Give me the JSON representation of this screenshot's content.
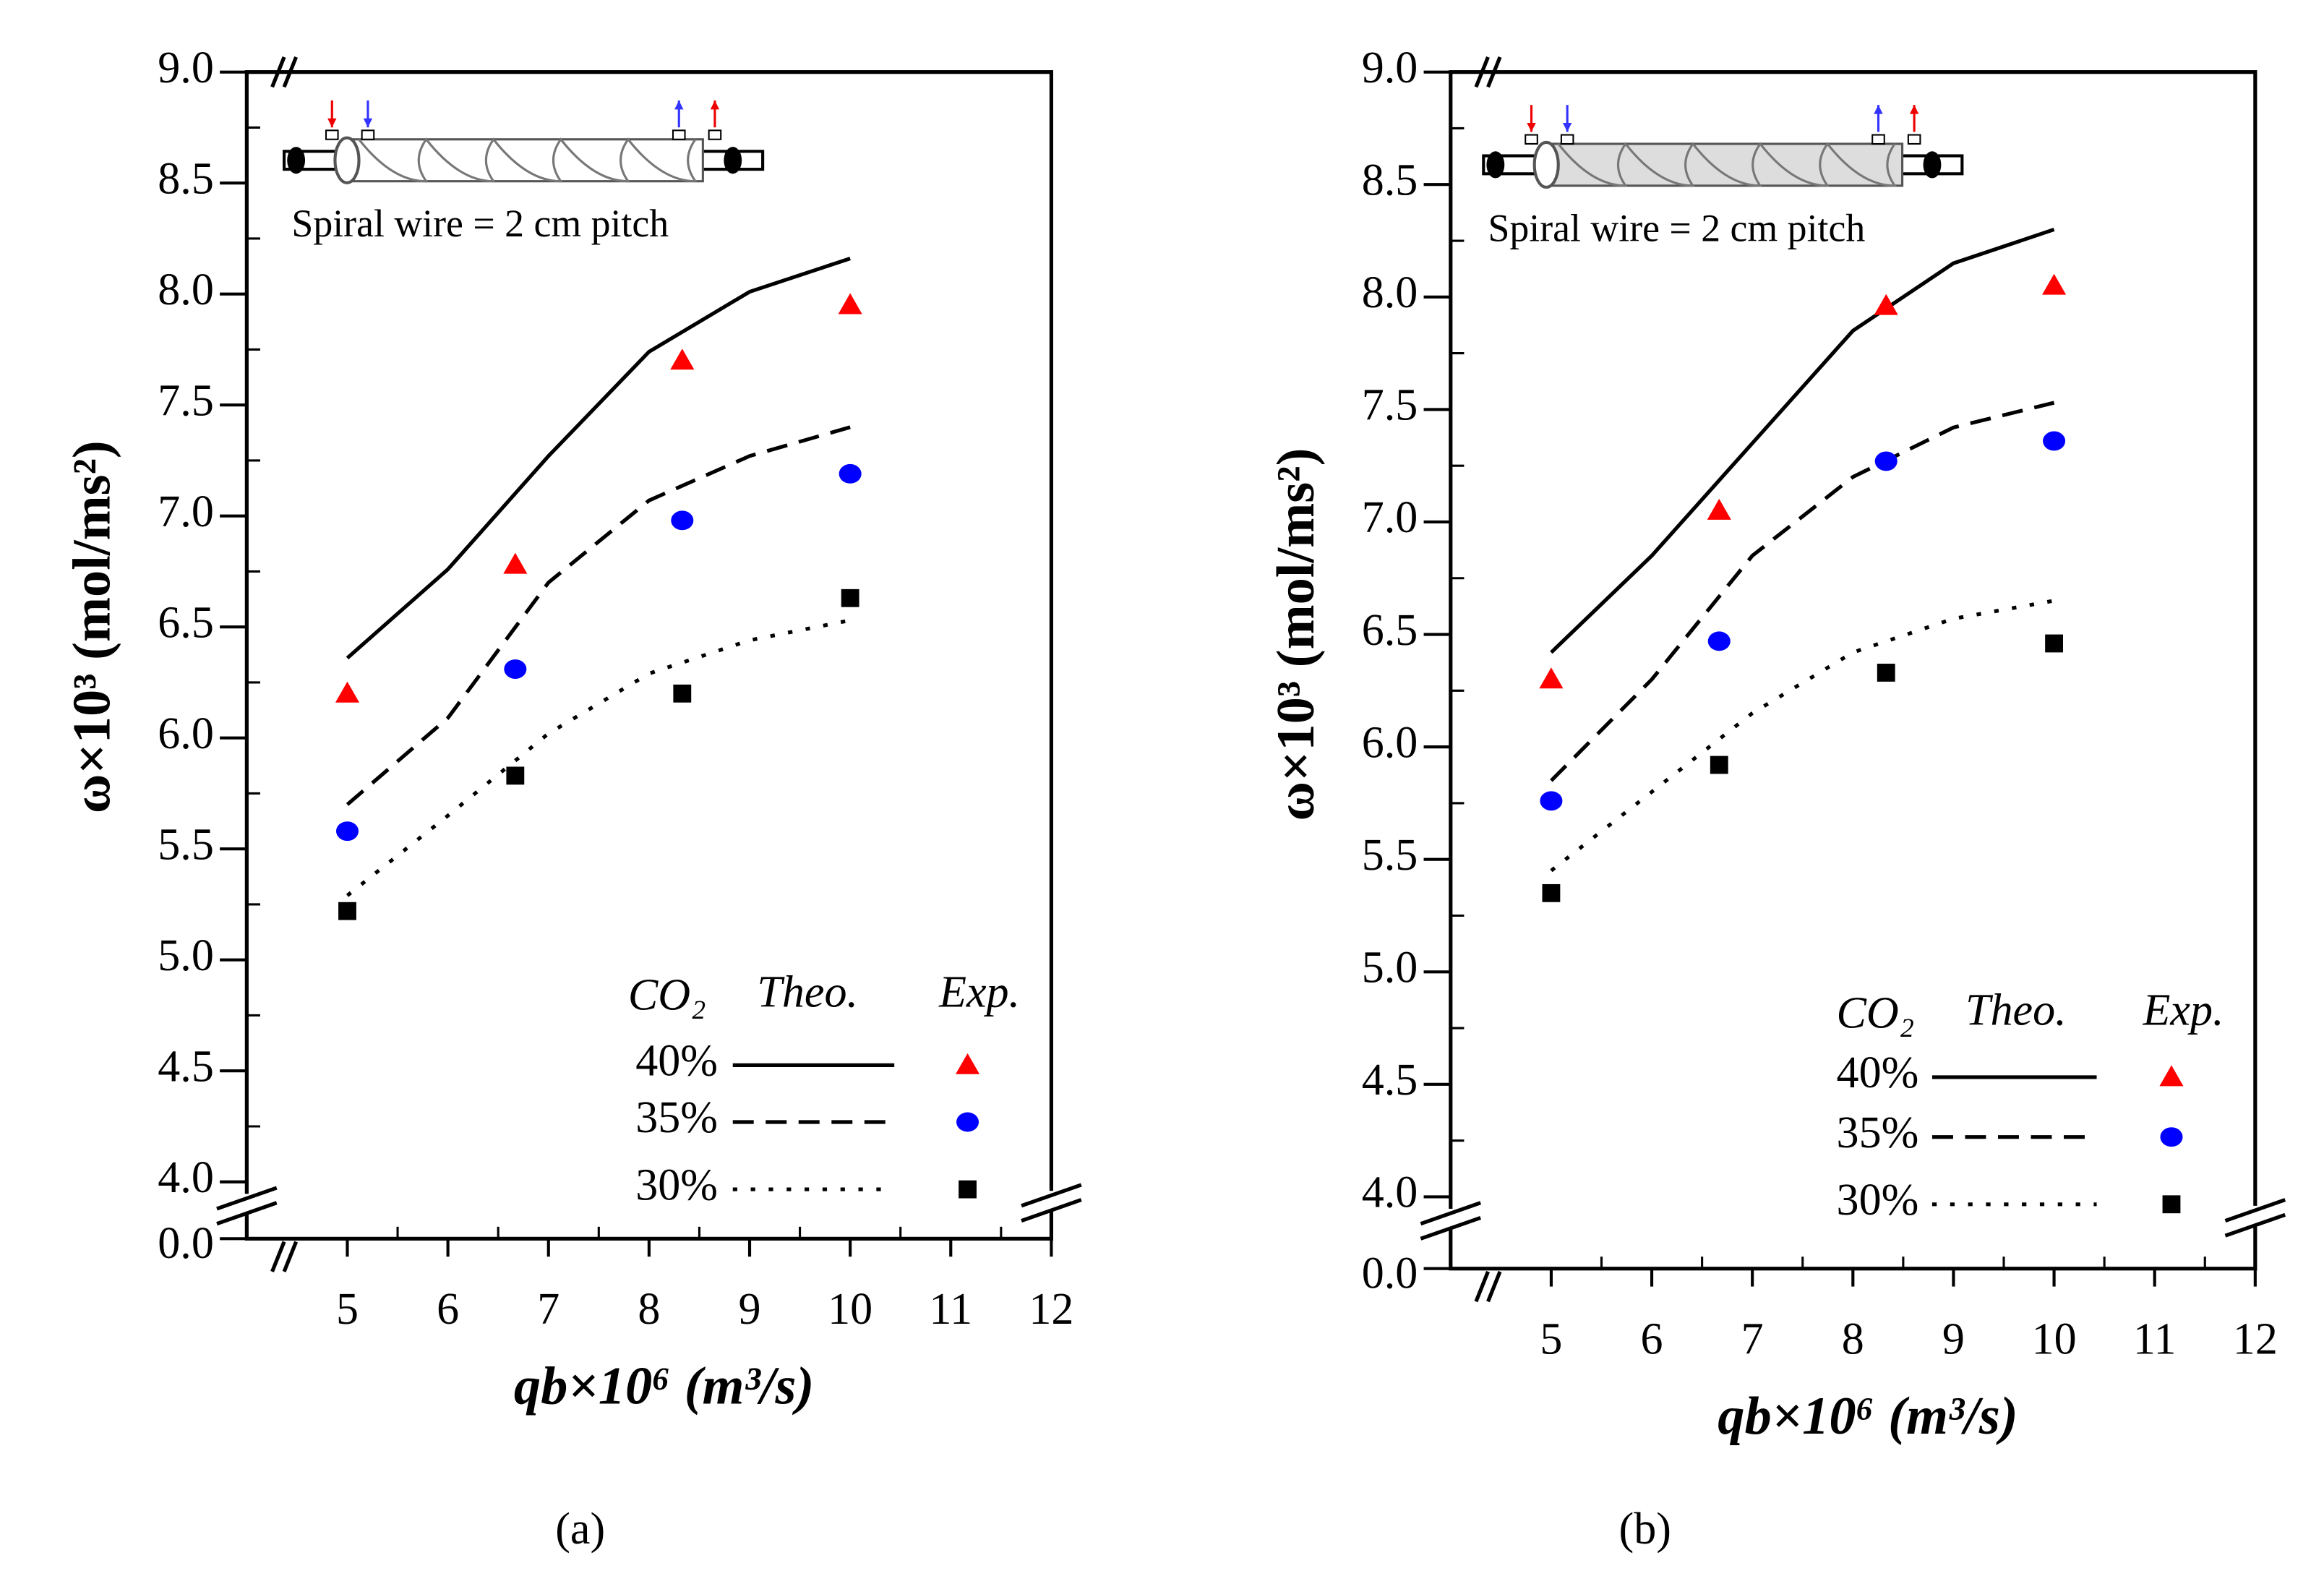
{
  "chart_data": [
    {
      "type": "line",
      "caption": "(a)",
      "inset_text": "Spiral wire = 2 cm pitch",
      "x_label": "qb×10⁶ (m³/s)",
      "y_label": "ω×10³ (mol/ms²)",
      "legend_title": "CO₂",
      "legend_headers": [
        "Theo.",
        "Exp."
      ],
      "xlim": [
        4,
        12
      ],
      "xticks": [
        5,
        6,
        7,
        8,
        9,
        10,
        11,
        12
      ],
      "ylim": [
        4,
        9
      ],
      "yticks": [
        {
          "value": 4,
          "label": "4.0"
        },
        {
          "value": 4.5,
          "label": "4.5"
        },
        {
          "value": 5,
          "label": "5.0"
        },
        {
          "value": 5.5,
          "label": "5.5"
        },
        {
          "value": 6,
          "label": "6.0"
        },
        {
          "value": 6.5,
          "label": "6.5"
        },
        {
          "value": 7,
          "label": "7.0"
        },
        {
          "value": 7.5,
          "label": "7.5"
        },
        {
          "value": 8,
          "label": "8.0"
        },
        {
          "value": 8.5,
          "label": "8.5"
        },
        {
          "value": 9,
          "label": "9.0"
        }
      ],
      "y_break_ticks": [
        {
          "value": 0,
          "label": "0.0"
        }
      ],
      "line_color": "#000000",
      "x": [
        5,
        6.67,
        8.33,
        10
      ],
      "theory_x": [
        5,
        6,
        7,
        8,
        9,
        10
      ],
      "series": [
        {
          "name": "40%",
          "color": "#ff0000",
          "marker": "triangle",
          "dash": "solid",
          "values": [
            6.2,
            6.78,
            7.7,
            7.95
          ],
          "theory": [
            6.36,
            6.76,
            7.27,
            7.74,
            8.01,
            8.16
          ]
        },
        {
          "name": "35%",
          "color": "#0000ff",
          "marker": "circle",
          "dash": "dashed",
          "values": [
            5.58,
            6.31,
            6.98,
            7.19
          ],
          "theory": [
            5.7,
            6.09,
            6.7,
            7.07,
            7.27,
            7.4
          ]
        },
        {
          "name": "30%",
          "color": "#000000",
          "marker": "square",
          "dash": "dotted",
          "values": [
            5.22,
            5.83,
            6.2,
            6.63
          ],
          "theory": [
            5.29,
            5.65,
            6.02,
            6.29,
            6.44,
            6.53
          ]
        }
      ]
    },
    {
      "type": "line",
      "caption": "(b)",
      "inset_text": "Spiral wire = 2 cm pitch",
      "x_label": "qb×10⁶ (m³/s)",
      "y_label": "ω×10³ (mol/ms²)",
      "legend_title": "CO₂",
      "legend_headers": [
        "Theo.",
        "Exp."
      ],
      "xlim": [
        4,
        12
      ],
      "xticks": [
        5,
        6,
        7,
        8,
        9,
        10,
        11,
        12
      ],
      "ylim": [
        4,
        9
      ],
      "yticks": [
        {
          "value": 4,
          "label": "4.0"
        },
        {
          "value": 4.5,
          "label": "4.5"
        },
        {
          "value": 5,
          "label": "5.0"
        },
        {
          "value": 5.5,
          "label": "5.5"
        },
        {
          "value": 6,
          "label": "6.0"
        },
        {
          "value": 6.5,
          "label": "6.5"
        },
        {
          "value": 7,
          "label": "7.0"
        },
        {
          "value": 7.5,
          "label": "7.5"
        },
        {
          "value": 8,
          "label": "8.0"
        },
        {
          "value": 8.5,
          "label": "8.5"
        },
        {
          "value": 9,
          "label": "9.0"
        }
      ],
      "y_break_ticks": [
        {
          "value": 0,
          "label": "0.0"
        }
      ],
      "line_color": "#000000",
      "x": [
        5,
        6.67,
        8.33,
        10
      ],
      "theory_x": [
        5,
        6,
        7,
        8,
        9,
        10
      ],
      "series": [
        {
          "name": "40%",
          "color": "#ff0000",
          "marker": "triangle",
          "dash": "solid",
          "values": [
            6.3,
            7.05,
            7.96,
            8.05
          ],
          "theory": [
            6.42,
            6.85,
            7.35,
            7.85,
            8.15,
            8.3
          ]
        },
        {
          "name": "35%",
          "color": "#0000ff",
          "marker": "circle",
          "dash": "dashed",
          "values": [
            5.76,
            6.47,
            7.27,
            7.36
          ],
          "theory": [
            5.85,
            6.3,
            6.85,
            7.2,
            7.42,
            7.53
          ]
        },
        {
          "name": "30%",
          "color": "#000000",
          "marker": "square",
          "dash": "dotted",
          "values": [
            5.35,
            5.92,
            6.33,
            6.46
          ],
          "theory": [
            5.45,
            5.8,
            6.15,
            6.42,
            6.57,
            6.65
          ]
        }
      ]
    }
  ]
}
